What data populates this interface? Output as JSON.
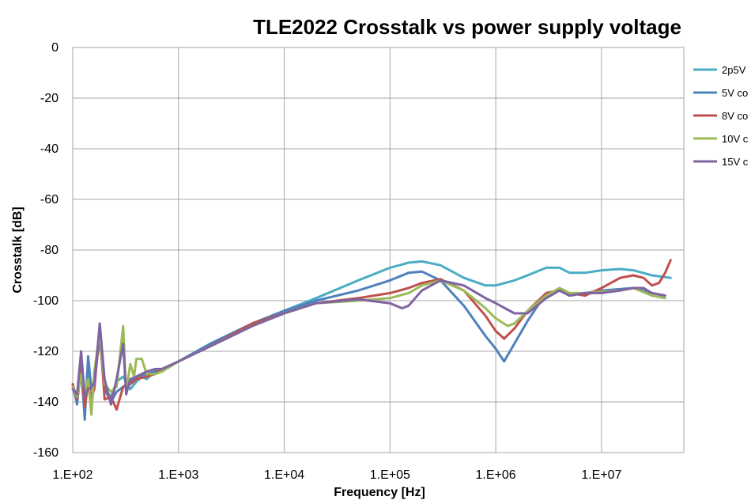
{
  "chart_data": {
    "type": "line",
    "title": "TLE2022 Crosstalk vs power supply voltage",
    "xlabel": "Frequency [Hz]",
    "ylabel": "Crosstalk [dB]",
    "x_scale": "log",
    "xlim": [
      100,
      60000000
    ],
    "ylim": [
      -160,
      0
    ],
    "x_ticks": [
      100,
      1000,
      10000,
      100000,
      1000000,
      10000000
    ],
    "x_tick_labels": [
      "1.E+02",
      "1.E+03",
      "1.E+04",
      "1.E+05",
      "1.E+06",
      "1.E+07"
    ],
    "y_ticks": [
      0,
      -20,
      -40,
      -60,
      -80,
      -100,
      -120,
      -140,
      -160
    ],
    "y_tick_labels": [
      "0",
      "-20",
      "-40",
      "-60",
      "-80",
      "-100",
      "-120",
      "-140",
      "-160"
    ],
    "grid": true,
    "legend_position": "right",
    "series": [
      {
        "name": "2p5V",
        "color": "#4bacc6",
        "points": [
          [
            100,
            -134
          ],
          [
            110,
            -140
          ],
          [
            120,
            -128
          ],
          [
            130,
            -145
          ],
          [
            140,
            -124
          ],
          [
            150,
            -141
          ],
          [
            160,
            -133
          ],
          [
            180,
            -112
          ],
          [
            200,
            -135
          ],
          [
            230,
            -138
          ],
          [
            260,
            -132
          ],
          [
            300,
            -130
          ],
          [
            350,
            -135
          ],
          [
            400,
            -132
          ],
          [
            450,
            -130
          ],
          [
            500,
            -131
          ],
          [
            600,
            -128
          ],
          [
            700,
            -127
          ],
          [
            1000,
            -124
          ],
          [
            2000,
            -117
          ],
          [
            5000,
            -109
          ],
          [
            10000,
            -104
          ],
          [
            20000,
            -99
          ],
          [
            50000,
            -92
          ],
          [
            100000,
            -87
          ],
          [
            150000,
            -85
          ],
          [
            200000,
            -84.5
          ],
          [
            300000,
            -86
          ],
          [
            500000,
            -91
          ],
          [
            800000,
            -94
          ],
          [
            1000000,
            -94
          ],
          [
            1500000,
            -92
          ],
          [
            2000000,
            -90
          ],
          [
            3000000,
            -87
          ],
          [
            4000000,
            -87
          ],
          [
            5000000,
            -89
          ],
          [
            7000000,
            -89
          ],
          [
            10000000,
            -88
          ],
          [
            15000000,
            -87.5
          ],
          [
            20000000,
            -88
          ],
          [
            30000000,
            -90
          ],
          [
            45000000,
            -91
          ]
        ]
      },
      {
        "name": "5V  co",
        "color": "#4f81bd",
        "points": [
          [
            100,
            -133
          ],
          [
            110,
            -141
          ],
          [
            120,
            -124
          ],
          [
            130,
            -147
          ],
          [
            140,
            -122
          ],
          [
            150,
            -135
          ],
          [
            160,
            -131
          ],
          [
            180,
            -115
          ],
          [
            200,
            -135
          ],
          [
            230,
            -140
          ],
          [
            260,
            -136
          ],
          [
            300,
            -134
          ],
          [
            350,
            -132
          ],
          [
            400,
            -130
          ],
          [
            500,
            -129
          ],
          [
            600,
            -128
          ],
          [
            700,
            -127
          ],
          [
            1000,
            -124
          ],
          [
            2000,
            -117
          ],
          [
            5000,
            -109
          ],
          [
            10000,
            -104
          ],
          [
            20000,
            -100
          ],
          [
            50000,
            -96
          ],
          [
            100000,
            -92
          ],
          [
            150000,
            -89
          ],
          [
            200000,
            -88.5
          ],
          [
            300000,
            -92
          ],
          [
            500000,
            -102
          ],
          [
            800000,
            -114
          ],
          [
            1000000,
            -119
          ],
          [
            1200000,
            -124
          ],
          [
            1500000,
            -117
          ],
          [
            2000000,
            -108
          ],
          [
            3000000,
            -97
          ],
          [
            4000000,
            -96
          ],
          [
            5000000,
            -98
          ],
          [
            7000000,
            -97
          ],
          [
            10000000,
            -96
          ],
          [
            20000000,
            -95
          ],
          [
            30000000,
            -97
          ],
          [
            40000000,
            -98
          ]
        ]
      },
      {
        "name": "8V  co",
        "color": "#c0504d",
        "points": [
          [
            100,
            -133
          ],
          [
            110,
            -139
          ],
          [
            120,
            -127
          ],
          [
            130,
            -142
          ],
          [
            140,
            -133
          ],
          [
            150,
            -138
          ],
          [
            160,
            -135
          ],
          [
            180,
            -111
          ],
          [
            200,
            -139
          ],
          [
            230,
            -138
          ],
          [
            260,
            -143
          ],
          [
            300,
            -134
          ],
          [
            350,
            -133
          ],
          [
            400,
            -131
          ],
          [
            500,
            -130
          ],
          [
            600,
            -129
          ],
          [
            700,
            -127
          ],
          [
            1000,
            -124
          ],
          [
            2000,
            -118
          ],
          [
            5000,
            -109
          ],
          [
            10000,
            -105
          ],
          [
            20000,
            -101
          ],
          [
            50000,
            -99
          ],
          [
            100000,
            -97
          ],
          [
            150000,
            -95
          ],
          [
            200000,
            -93
          ],
          [
            300000,
            -91.5
          ],
          [
            500000,
            -96
          ],
          [
            800000,
            -106
          ],
          [
            1000000,
            -112
          ],
          [
            1200000,
            -115
          ],
          [
            1500000,
            -111
          ],
          [
            2000000,
            -104
          ],
          [
            3000000,
            -97
          ],
          [
            4000000,
            -96
          ],
          [
            5000000,
            -97
          ],
          [
            7000000,
            -98
          ],
          [
            10000000,
            -95
          ],
          [
            15000000,
            -91
          ],
          [
            20000000,
            -90
          ],
          [
            25000000,
            -91
          ],
          [
            30000000,
            -94
          ],
          [
            35000000,
            -93
          ],
          [
            40000000,
            -89
          ],
          [
            45000000,
            -84
          ]
        ]
      },
      {
        "name": "10V  c",
        "color": "#9bbb59",
        "points": [
          [
            100,
            -134
          ],
          [
            110,
            -138
          ],
          [
            120,
            -129
          ],
          [
            130,
            -136
          ],
          [
            140,
            -131
          ],
          [
            150,
            -145
          ],
          [
            160,
            -128
          ],
          [
            180,
            -113
          ],
          [
            200,
            -133
          ],
          [
            230,
            -136
          ],
          [
            260,
            -134
          ],
          [
            300,
            -110
          ],
          [
            320,
            -136
          ],
          [
            350,
            -125
          ],
          [
            380,
            -130
          ],
          [
            400,
            -123
          ],
          [
            450,
            -123
          ],
          [
            500,
            -129
          ],
          [
            600,
            -129
          ],
          [
            700,
            -128
          ],
          [
            1000,
            -124
          ],
          [
            2000,
            -118
          ],
          [
            5000,
            -110
          ],
          [
            10000,
            -105
          ],
          [
            20000,
            -101
          ],
          [
            50000,
            -100
          ],
          [
            100000,
            -99
          ],
          [
            150000,
            -97
          ],
          [
            200000,
            -94
          ],
          [
            300000,
            -92
          ],
          [
            500000,
            -96
          ],
          [
            800000,
            -103
          ],
          [
            1000000,
            -107
          ],
          [
            1300000,
            -110
          ],
          [
            1500000,
            -109
          ],
          [
            2000000,
            -104
          ],
          [
            3000000,
            -98
          ],
          [
            4000000,
            -95
          ],
          [
            5000000,
            -97
          ],
          [
            7000000,
            -97
          ],
          [
            10000000,
            -96.5
          ],
          [
            15000000,
            -96
          ],
          [
            20000000,
            -95
          ],
          [
            30000000,
            -98
          ],
          [
            40000000,
            -99
          ]
        ]
      },
      {
        "name": "15V  c",
        "color": "#8064a2",
        "points": [
          [
            100,
            -135
          ],
          [
            110,
            -137
          ],
          [
            120,
            -120
          ],
          [
            130,
            -138
          ],
          [
            140,
            -135
          ],
          [
            150,
            -134
          ],
          [
            160,
            -133
          ],
          [
            180,
            -109
          ],
          [
            200,
            -131
          ],
          [
            230,
            -141
          ],
          [
            260,
            -131
          ],
          [
            300,
            -117
          ],
          [
            320,
            -137
          ],
          [
            350,
            -131
          ],
          [
            400,
            -130
          ],
          [
            500,
            -128
          ],
          [
            600,
            -127
          ],
          [
            700,
            -127
          ],
          [
            1000,
            -124
          ],
          [
            2000,
            -118
          ],
          [
            5000,
            -110
          ],
          [
            10000,
            -105
          ],
          [
            20000,
            -101
          ],
          [
            50000,
            -99.5
          ],
          [
            100000,
            -101
          ],
          [
            130000,
            -103
          ],
          [
            150000,
            -102
          ],
          [
            200000,
            -96
          ],
          [
            300000,
            -92
          ],
          [
            500000,
            -94
          ],
          [
            800000,
            -99
          ],
          [
            1000000,
            -101
          ],
          [
            1500000,
            -105
          ],
          [
            2000000,
            -105
          ],
          [
            3000000,
            -99
          ],
          [
            4000000,
            -96
          ],
          [
            5000000,
            -98
          ],
          [
            7000000,
            -97
          ],
          [
            10000000,
            -97
          ],
          [
            15000000,
            -96
          ],
          [
            20000000,
            -95
          ],
          [
            25000000,
            -95
          ],
          [
            30000000,
            -97
          ],
          [
            40000000,
            -98
          ]
        ]
      }
    ]
  }
}
